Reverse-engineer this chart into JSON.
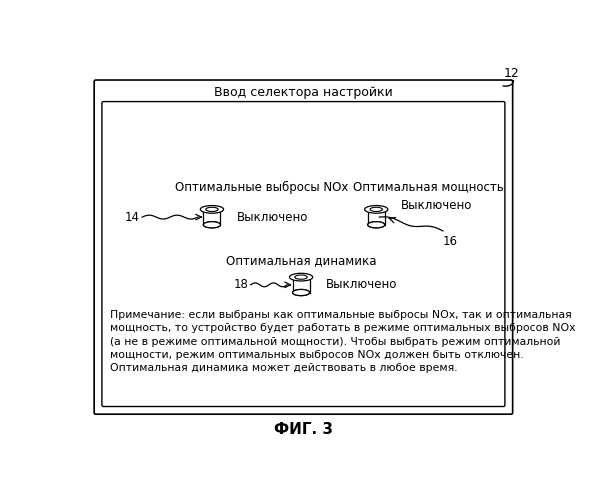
{
  "fig_label": "ФИГ. 3",
  "fig_number": "12",
  "outer_box_title": "Ввод селектора настройки",
  "label_nox": "Оптимальные выбросы NOx",
  "label_power": "Оптимальная мощность",
  "label_dynamics": "Оптимальная динамика",
  "off_text": "Выключено",
  "id_14": "14",
  "id_16": "16",
  "id_18": "18",
  "note_text": "Примечание: если выбраны как оптимальные выбросы NOx, так и оптимальная\nмощность, то устройство будет работать в режиме оптимальных выбросов NOx\n(а не в режиме оптимальной мощности). Чтобы выбрать режим оптимальной\nмощности, режим оптимальных выбросов NOx должен быть отключен.\nОптимальная динамика может действовать в любое время.",
  "background_color": "#ffffff",
  "box_color": "#000000",
  "text_color": "#000000",
  "font_size_title": 9.0,
  "font_size_label": 8.5,
  "font_size_note": 7.8,
  "font_size_fig": 11,
  "font_size_id": 8.5
}
